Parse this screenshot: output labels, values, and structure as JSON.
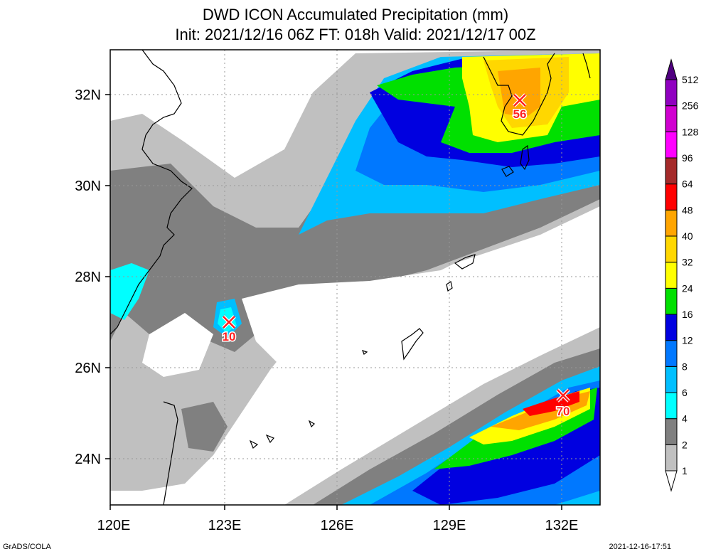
{
  "title": {
    "line1": "DWD ICON Accumulated Precipitation (mm)",
    "line2": "Init: 2021/12/16 06Z  FT: 018h  Valid: 2021/12/17 00Z"
  },
  "axes": {
    "lat_labels": [
      "32N",
      "30N",
      "28N",
      "26N",
      "24N"
    ],
    "lon_labels": [
      "120E",
      "123E",
      "126E",
      "129E",
      "132E"
    ]
  },
  "maxima": [
    {
      "name": "max-northeast",
      "value": "56"
    },
    {
      "name": "max-west",
      "value": "10"
    },
    {
      "name": "max-southeast",
      "value": "70"
    }
  ],
  "legend": {
    "levels": [
      "1",
      "2",
      "4",
      "6",
      "8",
      "12",
      "16",
      "24",
      "32",
      "40",
      "48",
      "64",
      "96",
      "128",
      "256",
      "512"
    ],
    "colors": [
      "#ffffff",
      "#c0c0c0",
      "#808080",
      "#00ffff",
      "#00bfff",
      "#0078ff",
      "#0000e0",
      "#00e000",
      "#ffff00",
      "#ffd700",
      "#ffa500",
      "#ff0000",
      "#a52a2a",
      "#ff00ff",
      "#d000d0",
      "#9000c0",
      "#500080"
    ]
  },
  "footer": {
    "left": "GrADS/COLA",
    "right": "2021-12-16-17:51"
  }
}
